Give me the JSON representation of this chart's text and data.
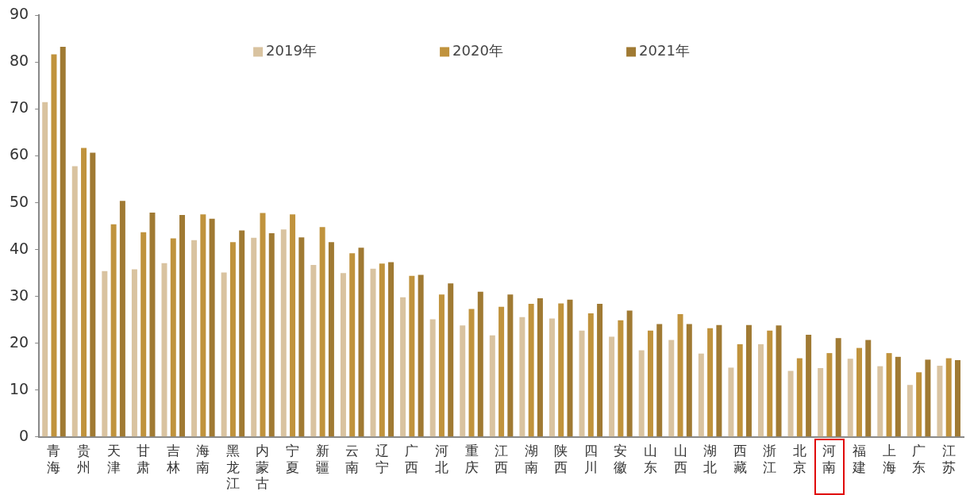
{
  "chart_data": {
    "type": "bar",
    "categories": [
      "青海",
      "贵州",
      "天津",
      "甘肃",
      "吉林",
      "海南",
      "黑龙江",
      "内蒙古",
      "宁夏",
      "新疆",
      "云南",
      "辽宁",
      "广西",
      "河北",
      "重庆",
      "江西",
      "湖南",
      "陕西",
      "四川",
      "安徽",
      "山东",
      "山西",
      "湖北",
      "西藏",
      "浙江",
      "北京",
      "河南",
      "福建",
      "上海",
      "广东",
      "江苏"
    ],
    "series": [
      {
        "name": "2019年",
        "color": "#d9c3a0",
        "values": [
          71.5,
          57.8,
          35.4,
          35.8,
          37.1,
          42,
          35.1,
          42.5,
          44.3,
          36.7,
          35,
          35.9,
          29.8,
          25.1,
          23.8,
          21.7,
          25.6,
          25.3,
          22.7,
          21.4,
          18.5,
          20.7,
          17.8,
          14.8,
          19.8,
          14.1,
          14.7,
          16.7,
          15.1,
          11.1,
          15.2
        ]
      },
      {
        "name": "2020年",
        "color": "#c0933d",
        "values": [
          81.7,
          61.7,
          45.4,
          43.7,
          42.4,
          47.5,
          41.6,
          47.8,
          47.5,
          44.8,
          39.2,
          37,
          34.4,
          30.4,
          27.3,
          27.8,
          28.4,
          28.5,
          26.4,
          24.9,
          22.7,
          26.2,
          23.2,
          19.8,
          22.7,
          16.8,
          17.9,
          19,
          17.9,
          13.8,
          16.8
        ]
      },
      {
        "name": "2021年",
        "color": "#a07a33",
        "values": [
          83.3,
          60.7,
          50.4,
          47.9,
          47.4,
          46.6,
          44.1,
          43.5,
          42.6,
          41.6,
          40.4,
          37.3,
          34.6,
          32.8,
          31,
          30.4,
          29.6,
          29.3,
          28.4,
          27,
          24.1,
          24.1,
          23.9,
          23.9,
          23.8,
          21.8,
          21.1,
          20.7,
          17.1,
          16.5,
          16.4
        ]
      }
    ],
    "ylim": [
      0,
      90
    ],
    "yticks": [
      0,
      10,
      20,
      30,
      40,
      50,
      60,
      70,
      80,
      90
    ],
    "grid": false,
    "legend": "top"
  }
}
